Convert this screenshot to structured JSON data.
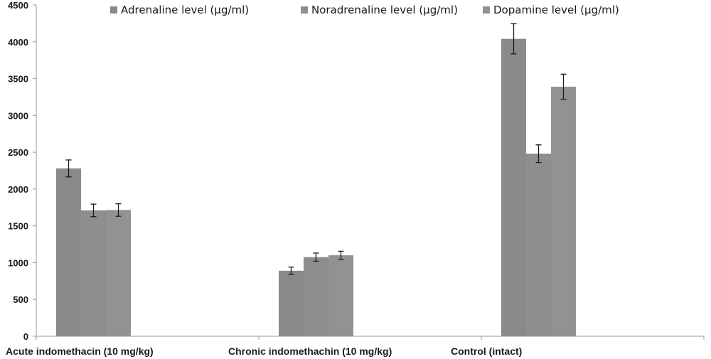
{
  "chart_data": {
    "type": "bar",
    "title": "",
    "xlabel": "",
    "ylabel": "",
    "ylim": [
      0,
      4500
    ],
    "yticks": [
      0,
      500,
      1000,
      1500,
      2000,
      2500,
      3000,
      3500,
      4000,
      4500
    ],
    "categories": [
      "Acute indomethacin (10 mg/kg)",
      "Chronic indomethachin (10 mg/kg)",
      "Control (intact)"
    ],
    "series": [
      {
        "name": "Adrenaline level (µg/ml)",
        "values": [
          2280,
          890,
          4040
        ],
        "errors": [
          115,
          50,
          205
        ],
        "color": "#8a8a8a"
      },
      {
        "name": "Noradrenaline level (µg/ml)",
        "values": [
          1710,
          1075,
          2480
        ],
        "errors": [
          85,
          55,
          120
        ],
        "color": "#8e8e8e"
      },
      {
        "name": "Dopamine level (µg/ml)",
        "values": [
          1715,
          1100,
          3390
        ],
        "errors": [
          85,
          55,
          170
        ],
        "color": "#929292"
      }
    ],
    "legend_position": "top",
    "grid": false
  }
}
